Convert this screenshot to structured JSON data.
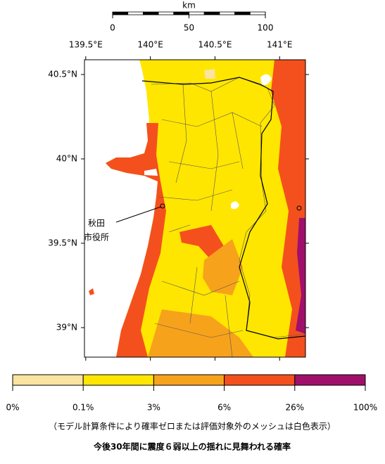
{
  "map": {
    "scale_bar": {
      "unit": "km",
      "ticks": [
        0,
        50,
        100
      ]
    },
    "lonlim": [
      139.49,
      141.2
    ],
    "latlim": [
      38.825,
      40.5875
    ],
    "lon_ticks": [
      {
        "value": 139.5,
        "label": "139.5°E"
      },
      {
        "value": 140,
        "label": "140°E"
      },
      {
        "value": 140.5,
        "label": "140.5°E"
      },
      {
        "value": 141,
        "label": "141°E"
      }
    ],
    "lat_ticks": [
      {
        "value": 40.5,
        "label": "40.5°N"
      },
      {
        "value": 40,
        "label": "40°N"
      },
      {
        "value": 39.5,
        "label": "39.5°N"
      },
      {
        "value": 39,
        "label": "39°N"
      }
    ],
    "place_label": [
      "秋田",
      "市役所"
    ]
  },
  "legend": {
    "colors": [
      "#fbe3a0",
      "#ffe600",
      "#f7a21b",
      "#f4501e",
      "#a0106b"
    ],
    "labels": [
      "0%",
      "0.1%",
      "3%",
      "6%",
      "26%",
      "100%"
    ],
    "note": "（モデル計算条件により確率ゼロまたは評価対象外のメッシュは白色表示）",
    "title": "今後30年間に震度６弱以上の揺れに見舞われる確率"
  }
}
